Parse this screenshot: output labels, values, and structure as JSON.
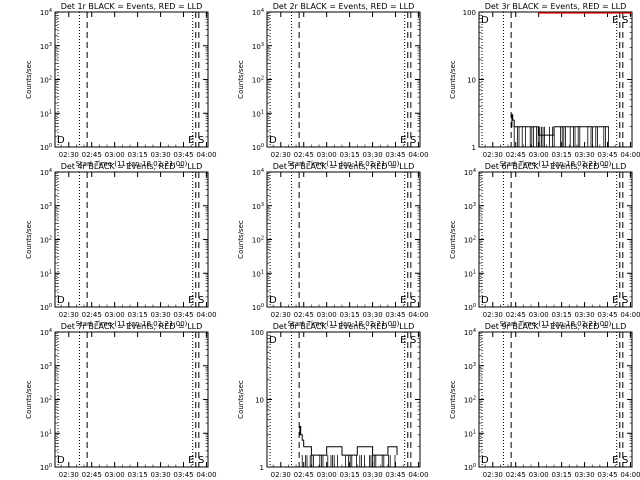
{
  "figure": {
    "xlabel": "Start Time (11-Jan-18 02:21:00)",
    "ylabel": "Counts/sec",
    "x_ticks": [
      "02:30",
      "02:45",
      "03:00",
      "03:15",
      "03:30",
      "03:45",
      "04:00"
    ],
    "marker_labels": {
      "dp": "D",
      "e": "E",
      "s": "S"
    }
  },
  "chart_data": [
    {
      "type": "line",
      "title": "Det 1r BLACK = Events, RED = LLD",
      "yscale": "log",
      "ylim": [
        1,
        10000
      ],
      "y_ticks": [
        "10^0",
        "10^1",
        "10^2",
        "10^3",
        "10^4"
      ],
      "xlim": [
        "02:21",
        "04:01"
      ],
      "series": [],
      "lld_level": null
    },
    {
      "type": "line",
      "title": "Det 2r BLACK = Events, RED = LLD",
      "yscale": "log",
      "ylim": [
        1,
        10000
      ],
      "y_ticks": [
        "10^0",
        "10^1",
        "10^2",
        "10^3",
        "10^4"
      ],
      "xlim": [
        "02:21",
        "04:01"
      ],
      "series": [],
      "lld_level": null
    },
    {
      "type": "line",
      "title": "Det 3r BLACK = Events, RED = LLD",
      "yscale": "log",
      "ylim": [
        1,
        100
      ],
      "y_ticks": [
        "1",
        "10",
        "100"
      ],
      "xlim": [
        "02:21",
        "04:01"
      ],
      "series": [
        {
          "x": [
            "02:42",
            "02:42.5",
            "02:43",
            "02:44",
            "02:45",
            "02:50",
            "03:00",
            "03:10",
            "03:20",
            "03:30",
            "03:40",
            "03:46"
          ],
          "values": [
            2,
            3,
            2.5,
            2,
            2,
            2,
            1.5,
            2,
            2,
            2,
            2,
            2
          ]
        }
      ],
      "lld_level": 100
    },
    {
      "type": "line",
      "title": "Det 4r BLACK = Events, RED = LLD",
      "yscale": "log",
      "ylim": [
        1,
        10000
      ],
      "y_ticks": [
        "10^0",
        "10^1",
        "10^2",
        "10^3",
        "10^4"
      ],
      "xlim": [
        "02:21",
        "04:01"
      ],
      "series": [],
      "lld_level": null
    },
    {
      "type": "line",
      "title": "Det 5r BLACK = Events, RED = LLD",
      "yscale": "log",
      "ylim": [
        1,
        10000
      ],
      "y_ticks": [
        "10^0",
        "10^1",
        "10^2",
        "10^3",
        "10^4"
      ],
      "xlim": [
        "02:21",
        "04:01"
      ],
      "series": [],
      "lld_level": null
    },
    {
      "type": "line",
      "title": "Det 6r BLACK = Events, RED = LLD",
      "yscale": "log",
      "ylim": [
        1,
        10000
      ],
      "y_ticks": [
        "10^0",
        "10^1",
        "10^2",
        "10^3",
        "10^4"
      ],
      "xlim": [
        "02:21",
        "04:01"
      ],
      "series": [],
      "lld_level": null
    },
    {
      "type": "line",
      "title": "Det 7r BLACK = Events, RED = LLD",
      "yscale": "log",
      "ylim": [
        1,
        10000
      ],
      "y_ticks": [
        "10^0",
        "10^1",
        "10^2",
        "10^3",
        "10^4"
      ],
      "xlim": [
        "02:21",
        "04:01"
      ],
      "series": [],
      "lld_level": null
    },
    {
      "type": "line",
      "title": "Det 8r BLACK = Events, RED = LLD",
      "yscale": "log",
      "ylim": [
        1,
        100
      ],
      "y_ticks": [
        "1",
        "10",
        "100"
      ],
      "xlim": [
        "02:21",
        "04:01"
      ],
      "series": [
        {
          "x": [
            "02:42",
            "02:42.5",
            "02:43",
            "02:44",
            "02:45",
            "02:50",
            "03:00",
            "03:10",
            "03:20",
            "03:30",
            "03:40",
            "03:46"
          ],
          "values": [
            3,
            4,
            3,
            2.5,
            2,
            1.5,
            2,
            1.5,
            2,
            1.5,
            2,
            1.5
          ]
        }
      ],
      "lld_level": null
    },
    {
      "type": "line",
      "title": "Det 9r BLACK = Events, RED = LLD",
      "yscale": "log",
      "ylim": [
        1,
        10000
      ],
      "y_ticks": [
        "10^0",
        "10^1",
        "10^2",
        "10^3",
        "10^4"
      ],
      "xlim": [
        "02:21",
        "04:01"
      ],
      "series": [],
      "lld_level": null
    }
  ]
}
